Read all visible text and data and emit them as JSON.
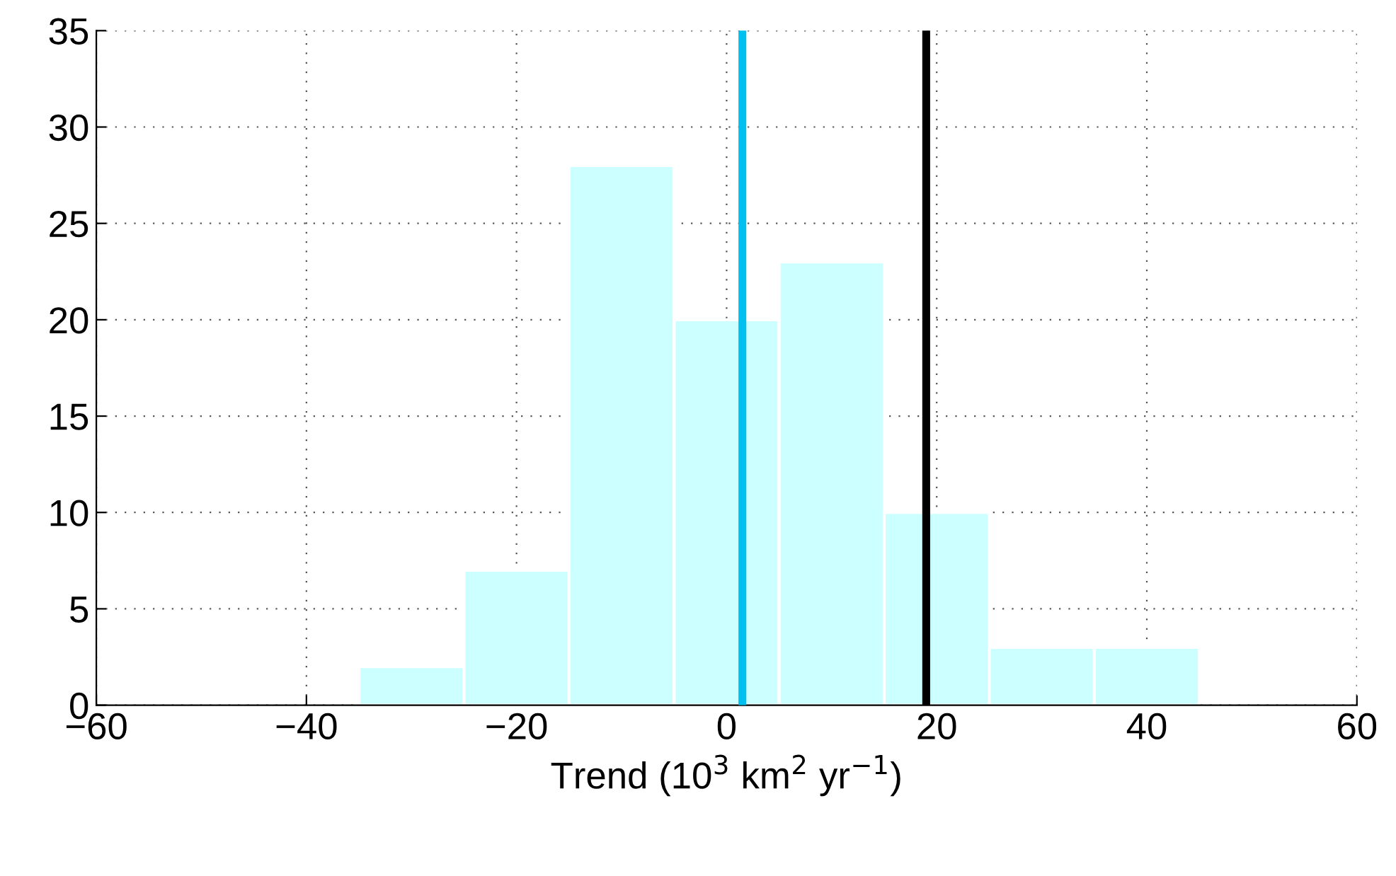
{
  "chart_data": {
    "type": "histogram",
    "xlabel": "Trend (10$^{3}$ km$^{2}$ yr$^{−1}$)",
    "bins": [
      -35,
      -25,
      -15,
      -5,
      5,
      15,
      25,
      35,
      45
    ],
    "values": [
      2,
      7,
      28,
      20,
      23,
      10,
      3,
      3
    ],
    "color": "#ccffff",
    "xlim": [
      -60,
      60
    ],
    "xticks": [
      -60,
      -40,
      -20,
      0,
      20,
      40,
      60
    ],
    "ylim": [
      0,
      35
    ],
    "yticks": [
      0,
      5,
      10,
      15,
      20,
      25,
      30,
      35
    ],
    "grid": true,
    "ref_lines": [
      {
        "axis": "x",
        "value": 1.5,
        "color": "#00c0f0"
      },
      {
        "axis": "x",
        "value": 19,
        "color": "#000000"
      }
    ]
  }
}
